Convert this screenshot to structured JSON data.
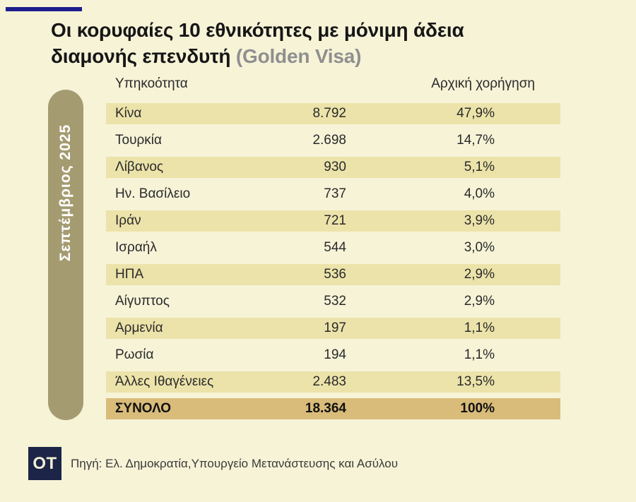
{
  "colors": {
    "background": "#f6f3d7",
    "row_highlight": "#ece3aa",
    "row_total": "#d9bc7a",
    "pill": "#a49b71",
    "logo_navy": "#1c2448",
    "accent_dash": "#1e1f8c",
    "title_gray": "#8f8f8f"
  },
  "title": {
    "line1": "Οι κορυφαίες 10 εθνικότητες με μόνιμη άδεια",
    "line2": "διαμονής επενδυτή ",
    "line2_suffix": "(Golden Visa)"
  },
  "sidebar": {
    "label": "Σεπτέμβριος 2025"
  },
  "table": {
    "headers": {
      "nationality": "Υπηκοότητα",
      "initial_grant": "Αρχική χορήγηση"
    },
    "rows": [
      {
        "country": "Κίνα",
        "count": "8.792",
        "percent": "47,9%"
      },
      {
        "country": "Τουρκία",
        "count": "2.698",
        "percent": "14,7%"
      },
      {
        "country": "Λίβανος",
        "count": "930",
        "percent": "5,1%"
      },
      {
        "country": "Ην. Βασίλειο",
        "count": "737",
        "percent": "4,0%"
      },
      {
        "country": "Ιράν",
        "count": "721",
        "percent": "3,9%"
      },
      {
        "country": "Ισραήλ",
        "count": "544",
        "percent": "3,0%"
      },
      {
        "country": "ΗΠΑ",
        "count": "536",
        "percent": "2,9%"
      },
      {
        "country": "Αίγυπτος",
        "count": "532",
        "percent": "2,9%"
      },
      {
        "country": "Αρμενία",
        "count": "197",
        "percent": "1,1%"
      },
      {
        "country": "Ρωσία",
        "count": "194",
        "percent": "1,1%"
      },
      {
        "country": "Άλλες Ιθαγένειες",
        "count": "2.483",
        "percent": "13,5%"
      }
    ],
    "total": {
      "country": "ΣΥΝΟΛΟ",
      "count": "18.364",
      "percent": "100%"
    }
  },
  "footer": {
    "logo": "OT",
    "source": "Πηγή: Ελ. Δημοκρατία,Υπουργείο Μετανάστευσης και Ασύλου"
  },
  "chart_data": {
    "type": "table",
    "title": "Οι κορυφαίες 10 εθνικότητες με μόνιμη άδεια διαμονής επενδυτή (Golden Visa)",
    "subtitle": "Σεπτέμβριος 2025",
    "columns": [
      "Υπηκοότητα",
      "Αρχική χορήγηση (πλήθος)",
      "Αρχική χορήγηση (%)"
    ],
    "categories": [
      "Κίνα",
      "Τουρκία",
      "Λίβανος",
      "Ην. Βασίλειο",
      "Ιράν",
      "Ισραήλ",
      "ΗΠΑ",
      "Αίγυπτος",
      "Αρμενία",
      "Ρωσία",
      "Άλλες Ιθαγένειες"
    ],
    "series": [
      {
        "name": "Αρχική χορήγηση (πλήθος)",
        "values": [
          8792,
          2698,
          930,
          737,
          721,
          544,
          536,
          532,
          197,
          194,
          2483
        ]
      },
      {
        "name": "Αρχική χορήγηση (%)",
        "values": [
          47.9,
          14.7,
          5.1,
          4.0,
          3.9,
          3.0,
          2.9,
          2.9,
          1.1,
          1.1,
          13.5
        ]
      }
    ],
    "total": {
      "label": "ΣΥΝΟΛΟ",
      "count": 18364,
      "percent": 100
    },
    "source": "Πηγή: Ελ. Δημοκρατία,Υπουργείο Μετανάστευσης και Ασύλου"
  }
}
